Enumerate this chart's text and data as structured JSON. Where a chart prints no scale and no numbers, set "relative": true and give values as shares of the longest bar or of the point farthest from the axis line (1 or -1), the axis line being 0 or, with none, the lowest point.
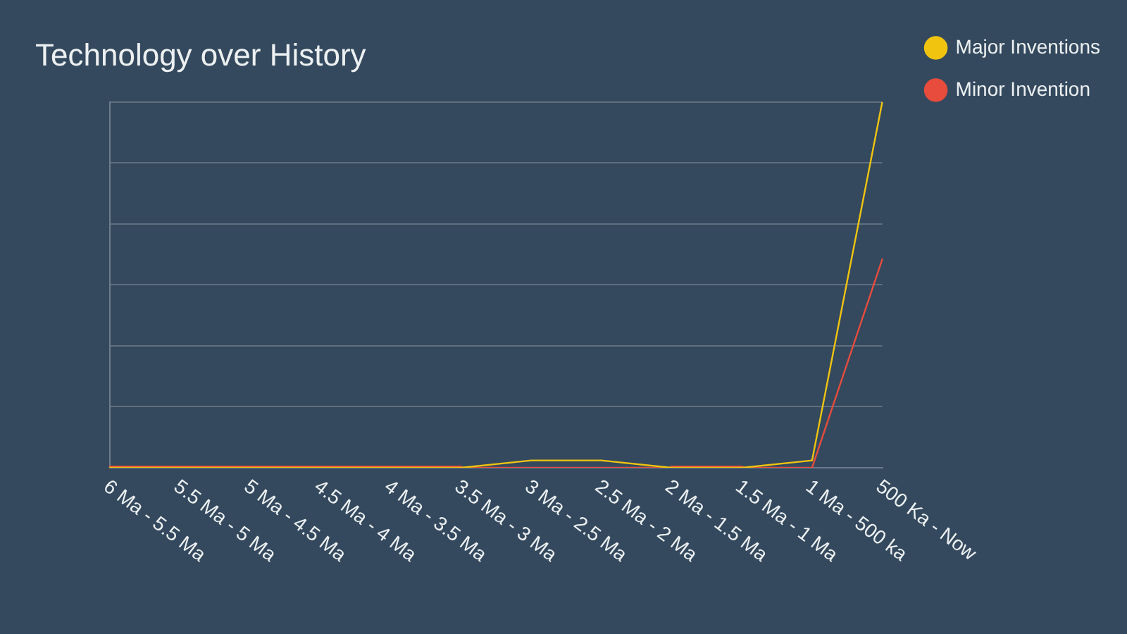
{
  "chart_data": {
    "type": "line",
    "title": "Technology over History",
    "categories": [
      "6 Ma - 5.5 Ma",
      "5.5 Ma - 5 Ma",
      "5 Ma - 4.5 Ma",
      "4.5 Ma - 4 Ma",
      "4 Ma - 3.5 Ma",
      "3.5 Ma - 3 Ma",
      "3 Ma - 2.5 Ma",
      "2.5 Ma - 2 Ma",
      "2 Ma - 1.5 Ma",
      "1.5 Ma - 1 Ma",
      "1 Ma - 500 ka",
      "500 Ka - Now"
    ],
    "series": [
      {
        "name": "Major Inventions",
        "color": "#f1c40f",
        "values": [
          0,
          0,
          0,
          0,
          0,
          0,
          0.02,
          0.02,
          0,
          0,
          0.02,
          1
        ]
      },
      {
        "name": "Minor Invention",
        "color": "#e74c3c",
        "values": [
          0,
          0,
          0,
          0,
          0,
          0,
          0,
          0,
          0,
          0,
          0,
          0.57
        ]
      }
    ],
    "relative": true,
    "grid": "y",
    "legend": "top right"
  }
}
